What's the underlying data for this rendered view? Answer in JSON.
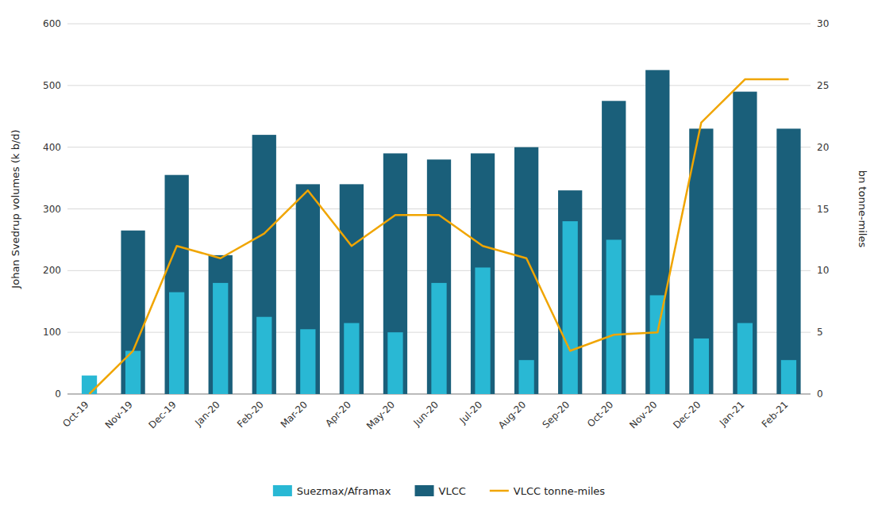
{
  "chart_data": {
    "type": "bar",
    "categories": [
      "Oct-19",
      "Nov-19",
      "Dec-19",
      "Jan-20",
      "Feb-20",
      "Mar-20",
      "Apr-20",
      "May-20",
      "Jun-20",
      "Jul-20",
      "Aug-20",
      "Sep-20",
      "Oct-20",
      "Nov-20",
      "Dec-20",
      "Jan-21",
      "Feb-21"
    ],
    "series": [
      {
        "name": "Suezmax/Aframax",
        "color": "#29b8d4",
        "values": [
          30,
          70,
          165,
          180,
          125,
          105,
          115,
          100,
          180,
          205,
          55,
          280,
          250,
          160,
          90,
          115,
          55
        ]
      },
      {
        "name": "VLCC",
        "color": "#1a5f7a",
        "values": [
          0,
          265,
          355,
          225,
          420,
          340,
          340,
          390,
          380,
          390,
          400,
          330,
          475,
          525,
          430,
          490,
          430
        ]
      },
      {
        "name": "VLCC tonne-miles",
        "type": "line",
        "axis": "y2",
        "color": "#f0a500",
        "values": [
          0.0,
          3.5,
          12.0,
          11.0,
          13.0,
          16.5,
          12.0,
          14.5,
          14.5,
          12.0,
          11.0,
          3.5,
          4.8,
          5.0,
          22.0,
          25.5,
          25.5
        ]
      }
    ],
    "ylabel": "Johan Svedrup volumes (k b/d)",
    "y2label": "bn tonne-miles",
    "ylim": [
      0,
      600
    ],
    "yticks": [
      0,
      100,
      200,
      300,
      400,
      500,
      600
    ],
    "y2lim": [
      0,
      30
    ],
    "y2ticks": [
      0,
      5,
      10,
      15,
      20,
      25,
      30
    ],
    "grid": true,
    "legend": "bottom"
  }
}
